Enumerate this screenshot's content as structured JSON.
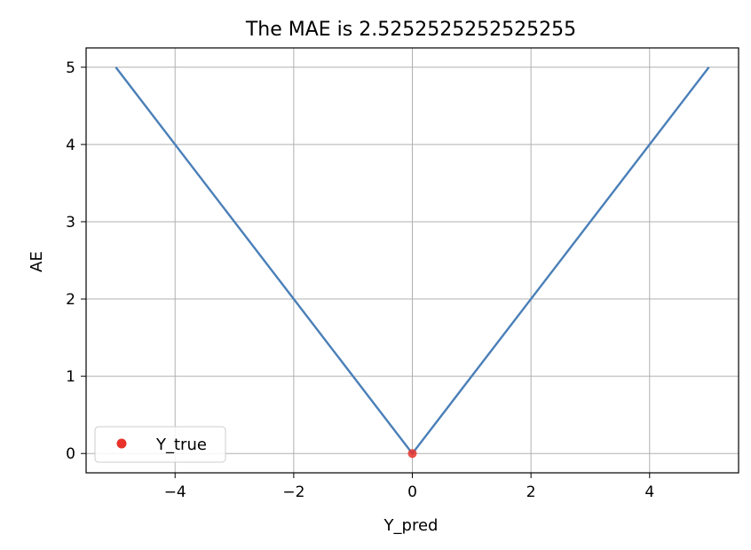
{
  "chart_data": {
    "type": "line",
    "title": "The MAE is  2.5252525252525255",
    "xlabel": "Y_pred",
    "ylabel": "AE",
    "xlim": [
      -5.5,
      5.5
    ],
    "ylim": [
      -0.25,
      5.25
    ],
    "xticks": [
      -4,
      -2,
      0,
      2,
      4
    ],
    "xtick_labels": [
      "−4",
      "−2",
      "0",
      "2",
      "4"
    ],
    "yticks": [
      0,
      1,
      2,
      3,
      4,
      5
    ],
    "ytick_labels": [
      "0",
      "1",
      "2",
      "3",
      "4",
      "5"
    ],
    "grid": true,
    "legend_position": "lower-left",
    "series": [
      {
        "kind": "line",
        "color": "#4a7fb8",
        "x": [
          -5,
          0,
          5
        ],
        "y": [
          5,
          0,
          5
        ]
      },
      {
        "name": "Y_true",
        "kind": "scatter",
        "color": "#e8322a",
        "x": [
          0
        ],
        "y": [
          0
        ]
      }
    ]
  }
}
